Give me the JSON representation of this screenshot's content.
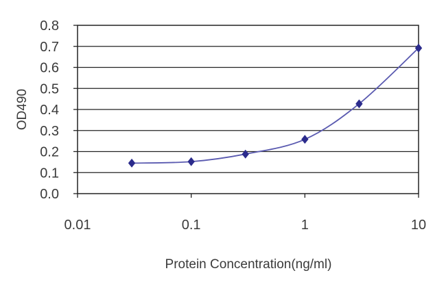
{
  "chart_data": {
    "type": "line",
    "xlabel": "Protein Concentration(ng/ml)",
    "ylabel": "OD490",
    "xscale": "log",
    "xlim": [
      0.01,
      10
    ],
    "ylim": [
      0.0,
      0.8
    ],
    "x_ticks": [
      "0.01",
      "0.1",
      "1",
      "10"
    ],
    "y_ticks": [
      "0.0",
      "0.1",
      "0.2",
      "0.3",
      "0.4",
      "0.5",
      "0.6",
      "0.7",
      "0.8"
    ],
    "grid": "horizontal",
    "legend": "none",
    "series": [
      {
        "x": [
          0.03,
          0.1,
          0.3,
          1,
          3,
          10
        ],
        "y": [
          0.145,
          0.152,
          0.188,
          0.258,
          0.427,
          0.692
        ],
        "color": "#2b2b8c"
      }
    ]
  }
}
